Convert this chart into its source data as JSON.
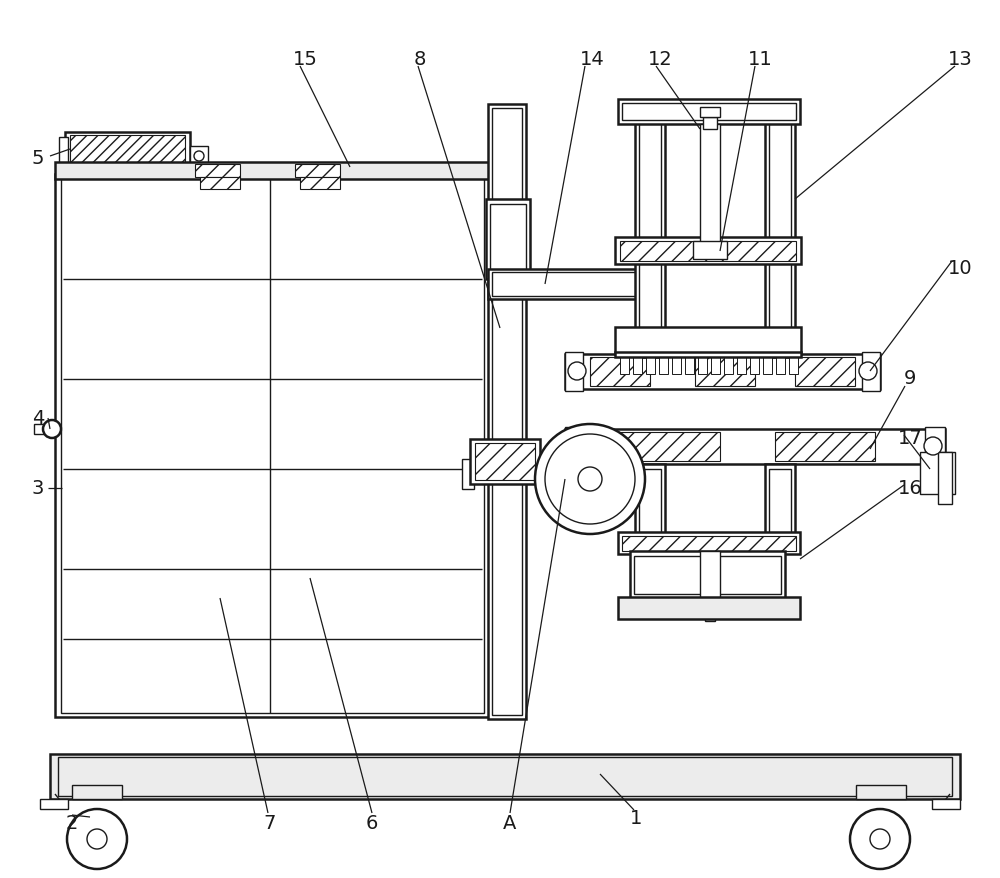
{
  "bg_color": "#ffffff",
  "line_color": "#1a1a1a",
  "figsize": [
    10.0,
    8.79
  ],
  "dpi": 100,
  "lw_main": 1.8,
  "lw_thin": 1.0,
  "lw_label": 0.9
}
